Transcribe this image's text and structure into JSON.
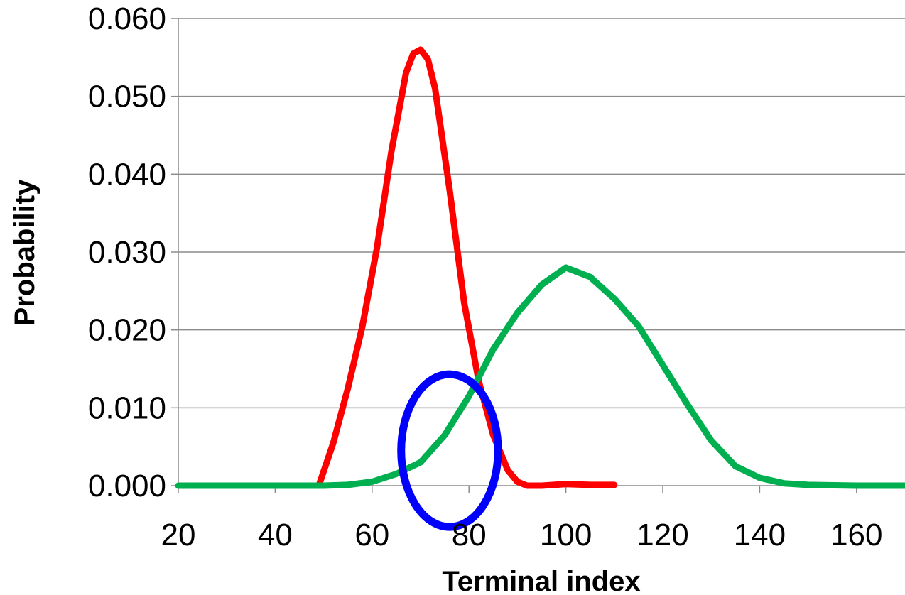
{
  "chart_data": {
    "type": "line",
    "title": "",
    "xlabel": "Terminal index",
    "ylabel": "Probability",
    "xlim": [
      20,
      170
    ],
    "ylim": [
      0,
      0.06
    ],
    "x_ticks": [
      20,
      40,
      60,
      80,
      100,
      120,
      140,
      160
    ],
    "x_tick_labels": [
      "20",
      "40",
      "60",
      "80",
      "100",
      "120",
      "140",
      "160"
    ],
    "y_ticks": [
      0,
      0.01,
      0.02,
      0.03,
      0.04,
      0.05,
      0.06
    ],
    "y_tick_labels": [
      "0.000",
      "0.010",
      "0.020",
      "0.030",
      "0.040",
      "0.050",
      "0.060"
    ],
    "grid": "horizontal",
    "legend": "none",
    "series": [
      {
        "color": "#ff0000",
        "x": [
          49,
          52,
          55,
          58,
          61,
          64,
          67,
          68.5,
          70,
          71.5,
          73,
          76,
          79,
          82,
          85,
          88,
          90,
          92,
          95,
          100,
          105,
          110
        ],
        "y": [
          0,
          0.0055,
          0.0125,
          0.0205,
          0.0305,
          0.043,
          0.053,
          0.0555,
          0.056,
          0.0548,
          0.051,
          0.038,
          0.0235,
          0.0135,
          0.0065,
          0.002,
          0.0005,
          0,
          0,
          0.0002,
          0.0001,
          0.0001
        ]
      },
      {
        "color": "#00b050",
        "x": [
          20,
          30,
          40,
          50,
          55,
          60,
          65,
          70,
          75,
          80,
          85,
          90,
          95,
          100,
          105,
          110,
          115,
          120,
          125,
          130,
          135,
          140,
          145,
          150,
          160,
          170
        ],
        "y": [
          0,
          0,
          0,
          0,
          0.0001,
          0.0005,
          0.0015,
          0.003,
          0.0065,
          0.0115,
          0.0175,
          0.0222,
          0.0258,
          0.028,
          0.0268,
          0.024,
          0.0205,
          0.0155,
          0.0105,
          0.0058,
          0.0025,
          0.001,
          0.0003,
          0.0001,
          0,
          0
        ]
      }
    ],
    "annotations": [
      {
        "shape": "ellipse",
        "color": "#0000ff",
        "cx": 76,
        "cy": 0.0045,
        "rx": 10,
        "ry": 0.0098
      }
    ]
  }
}
